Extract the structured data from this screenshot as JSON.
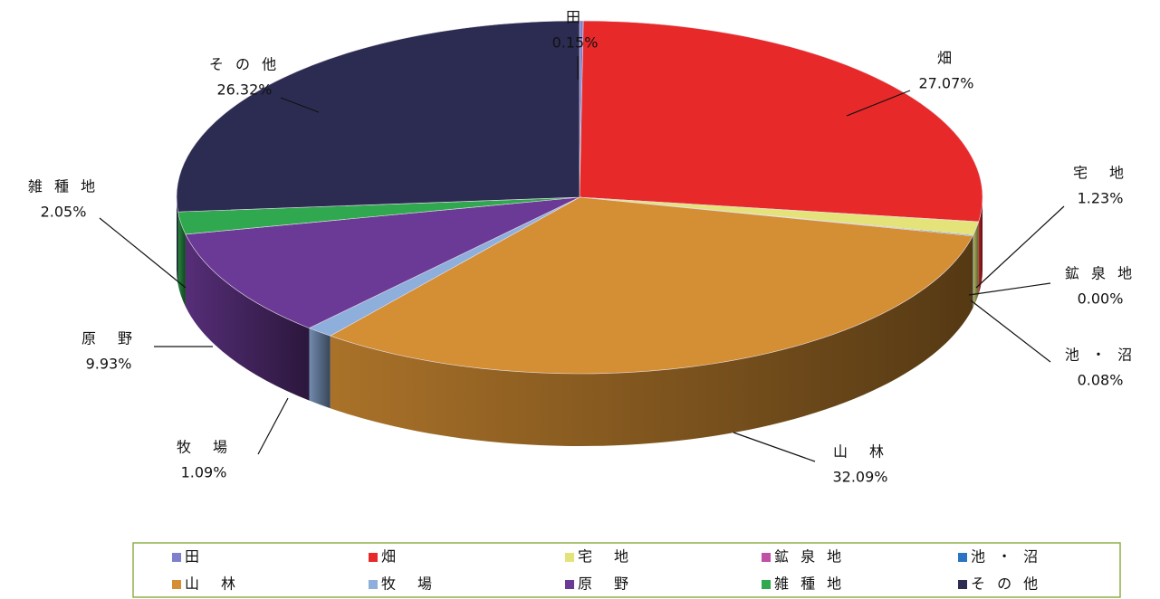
{
  "chart_data": {
    "type": "pie3d",
    "categories": [
      "田",
      "畑",
      "宅　地",
      "鉱 泉 地",
      "池 ・ 沼",
      "山　林",
      "牧　場",
      "原　野",
      "雑 種 地",
      "そ の 他"
    ],
    "values": [
      0.15,
      27.07,
      1.23,
      0.0,
      0.08,
      32.09,
      1.09,
      9.93,
      2.05,
      26.32
    ],
    "value_labels": [
      "0.15%",
      "27.07%",
      "1.23%",
      "0.00%",
      "0.08%",
      "32.09%",
      "1.09%",
      "9.93%",
      "2.05%",
      "26.32%"
    ],
    "colors": [
      "#7f7fcf",
      "#e8292a",
      "#e3e37a",
      "#c04fa7",
      "#2a74c2",
      "#d48e33",
      "#8eaedb",
      "#6b3a96",
      "#2fa84f",
      "#2c2c52"
    ],
    "legend": "bottom"
  }
}
